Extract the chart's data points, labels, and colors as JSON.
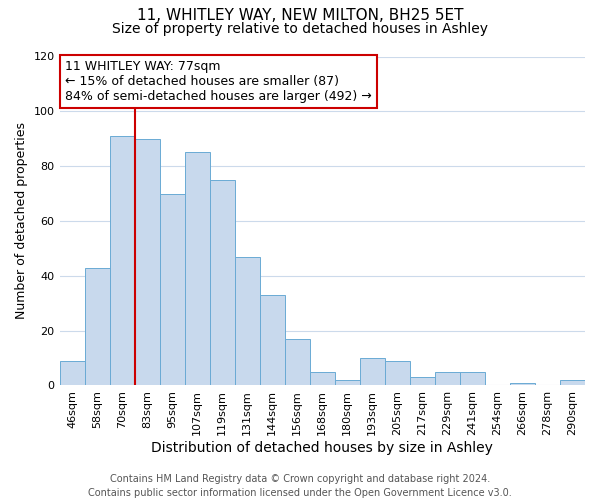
{
  "title": "11, WHITLEY WAY, NEW MILTON, BH25 5ET",
  "subtitle": "Size of property relative to detached houses in Ashley",
  "xlabel": "Distribution of detached houses by size in Ashley",
  "ylabel": "Number of detached properties",
  "bar_color": "#c8d9ed",
  "bar_edge_color": "#6aaad4",
  "categories": [
    "46sqm",
    "58sqm",
    "70sqm",
    "83sqm",
    "95sqm",
    "107sqm",
    "119sqm",
    "131sqm",
    "144sqm",
    "156sqm",
    "168sqm",
    "180sqm",
    "193sqm",
    "205sqm",
    "217sqm",
    "229sqm",
    "241sqm",
    "254sqm",
    "266sqm",
    "278sqm",
    "290sqm"
  ],
  "values": [
    9,
    43,
    91,
    90,
    70,
    85,
    75,
    47,
    33,
    17,
    5,
    2,
    10,
    9,
    3,
    5,
    5,
    0,
    1,
    0,
    2
  ],
  "ylim": [
    0,
    120
  ],
  "yticks": [
    0,
    20,
    40,
    60,
    80,
    100,
    120
  ],
  "vline_x": 2.5,
  "vline_color": "#cc0000",
  "annotation_lines": [
    "11 WHITLEY WAY: 77sqm",
    "← 15% of detached houses are smaller (87)",
    "84% of semi-detached houses are larger (492) →"
  ],
  "annotation_fontsize": 9,
  "footer_lines": [
    "Contains HM Land Registry data © Crown copyright and database right 2024.",
    "Contains public sector information licensed under the Open Government Licence v3.0."
  ],
  "title_fontsize": 11,
  "subtitle_fontsize": 10,
  "xlabel_fontsize": 10,
  "ylabel_fontsize": 9,
  "tick_fontsize": 8,
  "footer_fontsize": 7,
  "background_color": "#ffffff",
  "grid_color": "#ccdaeb"
}
